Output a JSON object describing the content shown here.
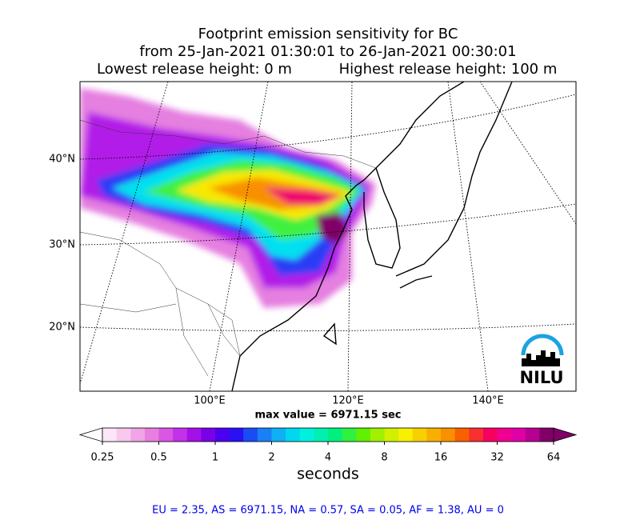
{
  "title": [
    "Footprint emission sensitivity for BC",
    "from 25-Jan-2021 01:30:01 to 26-Jan-2021 00:30:01"
  ],
  "release_heights": [
    "Lowest release height: 0 m",
    "Highest release height: 100 m"
  ],
  "lat_labels": [
    "40°N",
    "30°N",
    "20°N"
  ],
  "lon_labels": [
    "100°E",
    "120°E",
    "140°E"
  ],
  "max_value": "max value = 6971.15 sec",
  "logo": "NILU",
  "colorbar": {
    "ticks": [
      0.25,
      0.5,
      1,
      2,
      4,
      8,
      16,
      32,
      64
    ],
    "label": "seconds",
    "colors": [
      "#fde6f7",
      "#f8c8ee",
      "#f0a6e6",
      "#e87fe0",
      "#d957e3",
      "#c431e8",
      "#a50fe8",
      "#7a00e8",
      "#4c00f0",
      "#2a10f5",
      "#1a4cf5",
      "#1a80f5",
      "#10b0f5",
      "#00d8f0",
      "#00f0e0",
      "#00f0b0",
      "#00f080",
      "#30f040",
      "#60f000",
      "#a0f000",
      "#d0f000",
      "#f8f000",
      "#f8d000",
      "#f8b000",
      "#f89000",
      "#f86000",
      "#f83030",
      "#f80060",
      "#f00090",
      "#e000a8",
      "#b80090",
      "#800068"
    ]
  },
  "footer": "EU = 2.35,  AS = 6971.15,  NA = 0.57,  SA = 0.05,  AF = 1.38,  AU = 0"
}
